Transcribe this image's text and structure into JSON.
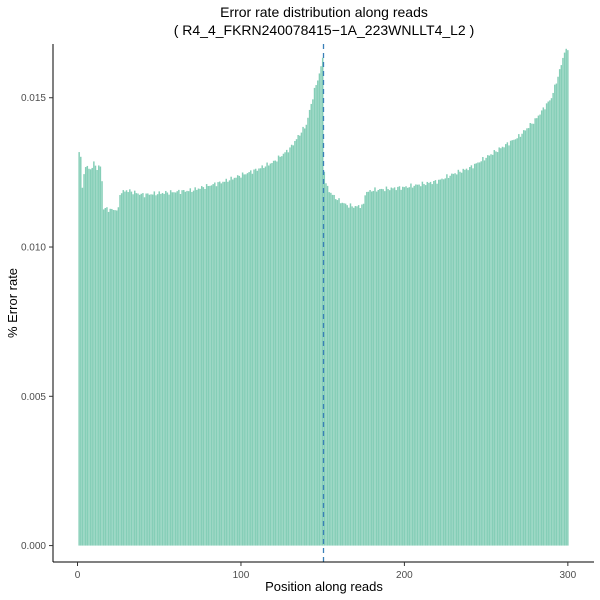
{
  "chart_data": {
    "type": "bar",
    "title": "Error rate distribution along reads",
    "subtitle": "( R4_4_FKRN240078415−1A_223WNLLT4_L2 )",
    "xlabel": "Position along reads",
    "ylabel": "% Error rate",
    "xlim": [
      -15,
      316
    ],
    "ylim": [
      -0.00055,
      0.0168
    ],
    "xticks": [
      0,
      100,
      200,
      300
    ],
    "xtick_labels": [
      "0",
      "100",
      "200",
      "300"
    ],
    "yticks": [
      0,
      0.005,
      0.01,
      0.015
    ],
    "ytick_labels": [
      "0.000",
      "0.005",
      "0.010",
      "0.015"
    ],
    "grid": false,
    "bar_color": "#66c2a5",
    "vline": {
      "x": 150.5,
      "color": "#3a7fb8",
      "style": "dashed"
    },
    "keypoints": [
      [
        1,
        0.0132
      ],
      [
        2,
        0.01305
      ],
      [
        3,
        0.0119
      ],
      [
        4,
        0.0125
      ],
      [
        5,
        0.0127
      ],
      [
        8,
        0.0126
      ],
      [
        10,
        0.0128
      ],
      [
        12,
        0.01265
      ],
      [
        14,
        0.0127
      ],
      [
        15,
        0.0122
      ],
      [
        16,
        0.0113
      ],
      [
        20,
        0.01125
      ],
      [
        25,
        0.01125
      ],
      [
        26,
        0.0118
      ],
      [
        30,
        0.0119
      ],
      [
        40,
        0.01175
      ],
      [
        50,
        0.0118
      ],
      [
        60,
        0.01185
      ],
      [
        70,
        0.0119
      ],
      [
        80,
        0.01205
      ],
      [
        90,
        0.0122
      ],
      [
        100,
        0.0124
      ],
      [
        110,
        0.0126
      ],
      [
        120,
        0.01285
      ],
      [
        130,
        0.0133
      ],
      [
        140,
        0.0141
      ],
      [
        145,
        0.01525
      ],
      [
        148,
        0.0158
      ],
      [
        150,
        0.0163
      ],
      [
        151,
        0.0126
      ],
      [
        152,
        0.0121
      ],
      [
        155,
        0.0118
      ],
      [
        160,
        0.01155
      ],
      [
        165,
        0.0114
      ],
      [
        170,
        0.01135
      ],
      [
        175,
        0.0114
      ],
      [
        176,
        0.0118
      ],
      [
        180,
        0.0119
      ],
      [
        190,
        0.01195
      ],
      [
        200,
        0.012
      ],
      [
        210,
        0.0121
      ],
      [
        220,
        0.0122
      ],
      [
        230,
        0.01245
      ],
      [
        240,
        0.01265
      ],
      [
        250,
        0.013
      ],
      [
        260,
        0.01335
      ],
      [
        270,
        0.0137
      ],
      [
        280,
        0.01425
      ],
      [
        290,
        0.015
      ],
      [
        295,
        0.0159
      ],
      [
        298,
        0.01655
      ],
      [
        300,
        0.0166
      ]
    ]
  }
}
